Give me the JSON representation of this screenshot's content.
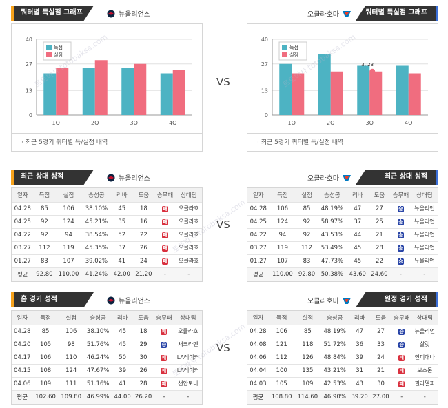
{
  "vs_label": "VS",
  "watermark": "토토박사 totobaksa.com",
  "colors": {
    "score": "#4db3c3",
    "allowed": "#f06d7f",
    "win": "#2743a6",
    "loss": "#d9303e"
  },
  "charts": {
    "left": {
      "tab": "쿼터별 득실점 그래프",
      "team": "뉴올리언스",
      "note": "최근 5경기 쿼터별 득/실점 내역"
    },
    "right": {
      "tab": "쿼터별 득실점 그래프",
      "team": "오클라호마",
      "note": "최근 5경기 쿼터별 득/실점 내역",
      "tooltip": "3, 23"
    }
  },
  "chart_data": [
    {
      "type": "bar",
      "categories": [
        "1Q",
        "2Q",
        "3Q",
        "4Q"
      ],
      "series": [
        {
          "name": "득점",
          "values": [
            22,
            25,
            25,
            22
          ]
        },
        {
          "name": "실점",
          "values": [
            25,
            29,
            27,
            24
          ]
        }
      ],
      "ylim": [
        0,
        40
      ],
      "yticks": [
        0,
        13,
        27,
        40
      ],
      "legend": "top-left"
    },
    {
      "type": "bar",
      "categories": [
        "1Q",
        "2Q",
        "3Q",
        "4Q"
      ],
      "series": [
        {
          "name": "득점",
          "values": [
            27,
            32,
            26,
            26
          ]
        },
        {
          "name": "실점",
          "values": [
            22,
            23,
            23,
            22
          ]
        }
      ],
      "ylim": [
        0,
        40
      ],
      "yticks": [
        0,
        13,
        27,
        40
      ],
      "legend": "top-left"
    }
  ],
  "tables": {
    "headers": [
      "일자",
      "득점",
      "실점",
      "승성공",
      "리바",
      "도움",
      "승무패",
      "상대팀"
    ],
    "recent_left": {
      "tab": "최근 상대 성적",
      "team": "뉴올리언스",
      "rows": [
        [
          "04.28",
          "85",
          "106",
          "38.10%",
          "45",
          "18",
          "패",
          "오클라호"
        ],
        [
          "04.25",
          "92",
          "124",
          "45.21%",
          "35",
          "16",
          "패",
          "오클라호"
        ],
        [
          "04.22",
          "92",
          "94",
          "38.54%",
          "52",
          "22",
          "패",
          "오클라호"
        ],
        [
          "03.27",
          "112",
          "119",
          "45.35%",
          "37",
          "26",
          "패",
          "오클라호"
        ],
        [
          "01.27",
          "83",
          "107",
          "39.02%",
          "41",
          "24",
          "패",
          "오클라호"
        ]
      ],
      "avg": [
        "평균",
        "92.80",
        "110.00",
        "41.24%",
        "42.00",
        "21.20",
        "-",
        "-"
      ]
    },
    "recent_right": {
      "tab": "최근 상대 성적",
      "team": "오클라호마",
      "rows": [
        [
          "04.28",
          "106",
          "85",
          "48.19%",
          "47",
          "27",
          "승",
          "뉴올리언"
        ],
        [
          "04.25",
          "124",
          "92",
          "58.97%",
          "37",
          "25",
          "승",
          "뉴올리언"
        ],
        [
          "04.22",
          "94",
          "92",
          "43.53%",
          "44",
          "21",
          "승",
          "뉴올리언"
        ],
        [
          "03.27",
          "119",
          "112",
          "53.49%",
          "45",
          "28",
          "승",
          "뉴올리언"
        ],
        [
          "01.27",
          "107",
          "83",
          "47.73%",
          "45",
          "22",
          "승",
          "뉴올리언"
        ]
      ],
      "avg": [
        "평균",
        "110.00",
        "92.80",
        "50.38%",
        "43.60",
        "24.60",
        "-",
        "-"
      ]
    },
    "home_left": {
      "tab": "홈 경기 성적",
      "team": "뉴올리언스",
      "rows": [
        [
          "04.28",
          "85",
          "106",
          "38.10%",
          "45",
          "18",
          "패",
          "오클라호"
        ],
        [
          "04.20",
          "105",
          "98",
          "51.76%",
          "45",
          "29",
          "승",
          "새크라멘"
        ],
        [
          "04.17",
          "106",
          "110",
          "46.24%",
          "50",
          "30",
          "패",
          "LA레이커"
        ],
        [
          "04.15",
          "108",
          "124",
          "47.67%",
          "39",
          "26",
          "패",
          "LA레이커"
        ],
        [
          "04.06",
          "109",
          "111",
          "51.16%",
          "41",
          "28",
          "패",
          "샌안토니"
        ]
      ],
      "avg": [
        "평균",
        "102.60",
        "109.80",
        "46.99%",
        "44.00",
        "26.20",
        "-",
        "-"
      ]
    },
    "away_right": {
      "tab": "원정 경기 성적",
      "team": "오클라호마",
      "rows": [
        [
          "04.28",
          "106",
          "85",
          "48.19%",
          "47",
          "27",
          "승",
          "뉴올리언"
        ],
        [
          "04.08",
          "121",
          "118",
          "51.72%",
          "36",
          "33",
          "승",
          "샬럿"
        ],
        [
          "04.06",
          "112",
          "126",
          "48.84%",
          "39",
          "24",
          "패",
          "인디애나"
        ],
        [
          "04.04",
          "100",
          "135",
          "43.21%",
          "31",
          "21",
          "패",
          "보스톤"
        ],
        [
          "04.03",
          "105",
          "109",
          "42.53%",
          "43",
          "30",
          "패",
          "필라델피"
        ]
      ],
      "avg": [
        "평균",
        "108.80",
        "114.60",
        "46.90%",
        "39.20",
        "27.00",
        "-",
        "-"
      ]
    }
  }
}
